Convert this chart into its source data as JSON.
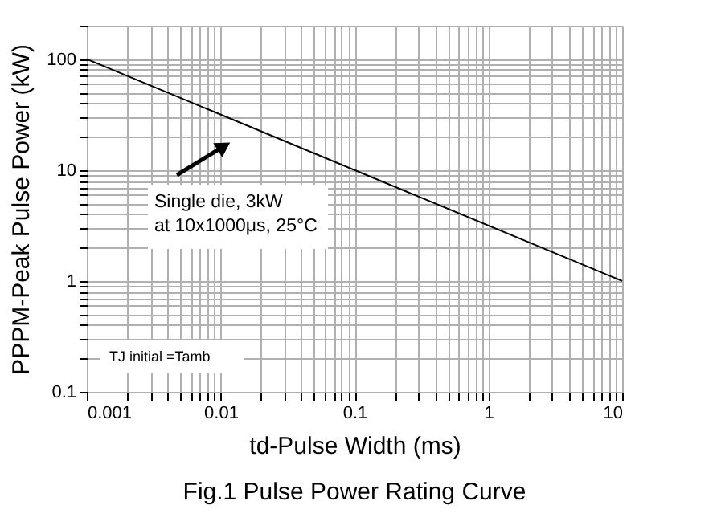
{
  "chart_data": {
    "type": "line",
    "title": "Fig.1 Pulse Power Rating Curve",
    "xlabel": "td-Pulse Width (ms)",
    "ylabel": "PPPM-Peak Pulse Power (kW)",
    "x": [
      0.001,
      10
    ],
    "series": [
      {
        "color": "#000000",
        "values": [
          100,
          1
        ]
      }
    ],
    "log": "xy",
    "grid": true,
    "xlim": [
      0.001,
      10
    ],
    "ylim": [
      0.1,
      200
    ],
    "xticks": [
      0.001,
      {
        "value": 0.002,
        "label": null
      },
      {
        "value": 0.003,
        "label": null
      },
      {
        "value": 0.004,
        "label": null
      },
      {
        "value": 0.005,
        "label": null
      },
      {
        "value": 0.006,
        "label": null
      },
      {
        "value": 0.007,
        "label": null
      },
      {
        "value": 0.008,
        "label": null
      },
      {
        "value": 0.009,
        "label": null
      },
      0.01,
      {
        "value": 0.02,
        "label": null
      },
      {
        "value": 0.03,
        "label": null
      },
      {
        "value": 0.04,
        "label": null
      },
      {
        "value": 0.05,
        "label": null
      },
      {
        "value": 0.06,
        "label": null
      },
      {
        "value": 0.07,
        "label": null
      },
      {
        "value": 0.08,
        "label": null
      },
      {
        "value": 0.09,
        "label": null
      },
      0.1,
      {
        "value": 0.2,
        "label": null
      },
      {
        "value": 0.3,
        "label": null
      },
      {
        "value": 0.4,
        "label": null
      },
      {
        "value": 0.5,
        "label": null
      },
      {
        "value": 0.6,
        "label": null
      },
      {
        "value": 0.7,
        "label": null
      },
      {
        "value": 0.8,
        "label": null
      },
      {
        "value": 0.9,
        "label": null
      },
      1,
      {
        "value": 2,
        "label": null
      },
      {
        "value": 3,
        "label": null
      },
      {
        "value": 4,
        "label": null
      },
      {
        "value": 5,
        "label": null
      },
      {
        "value": 6,
        "label": null
      },
      {
        "value": 7,
        "label": null
      },
      {
        "value": 8,
        "label": null
      },
      {
        "value": 9,
        "label": null
      },
      10
    ],
    "yticks": [
      0.1,
      {
        "value": 0.2,
        "label": null
      },
      {
        "value": 0.3,
        "label": null
      },
      {
        "value": 0.4,
        "label": null
      },
      {
        "value": 0.5,
        "label": null
      },
      {
        "value": 0.6,
        "label": null
      },
      {
        "value": 0.7,
        "label": null
      },
      {
        "value": 0.8,
        "label": null
      },
      {
        "value": 0.9,
        "label": null
      },
      1,
      {
        "value": 2,
        "label": null
      },
      {
        "value": 3,
        "label": null
      },
      {
        "value": 4,
        "label": null
      },
      {
        "value": 5,
        "label": null
      },
      {
        "value": 6,
        "label": null
      },
      {
        "value": 7,
        "label": null
      },
      {
        "value": 8,
        "label": null
      },
      {
        "value": 9,
        "label": null
      },
      10,
      {
        "value": 20,
        "label": null
      },
      {
        "value": 30,
        "label": null
      },
      {
        "value": 40,
        "label": null
      },
      {
        "value": 50,
        "label": null
      },
      {
        "value": 60,
        "label": null
      },
      {
        "value": 70,
        "label": null
      },
      {
        "value": 80,
        "label": null
      },
      {
        "value": 90,
        "label": null
      },
      100,
      {
        "value": 200,
        "label": null
      }
    ],
    "annotations": [
      "Single die, 3kW\nat 10x1000μs, 25°C",
      "TJ initial =Tamb"
    ]
  }
}
